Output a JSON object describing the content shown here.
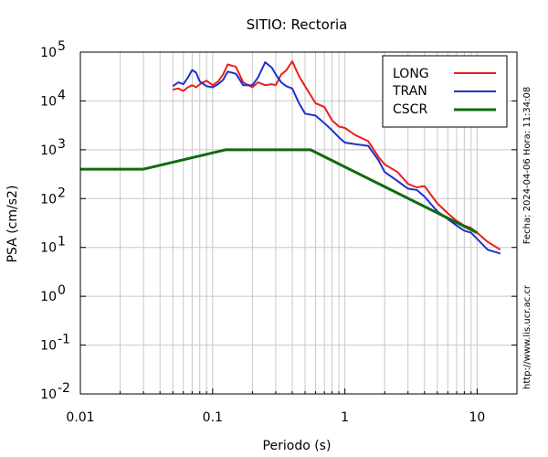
{
  "chart_data": {
    "type": "line",
    "title": "SITIO: Rectoria",
    "xlabel": "Periodo (s)",
    "ylabel": "PSA (cm/s2)",
    "x_scale": "log",
    "y_scale": "log",
    "xlim": [
      0.01,
      20
    ],
    "ylim": [
      0.01,
      100000
    ],
    "x_ticks": [
      {
        "value": 0.01,
        "label": "0.01"
      },
      {
        "value": 0.1,
        "label": "0.1"
      },
      {
        "value": 1,
        "label": "1"
      },
      {
        "value": 10,
        "label": "10"
      }
    ],
    "y_ticks": [
      {
        "value": 0.01,
        "base": "10",
        "exp": "-2"
      },
      {
        "value": 0.1,
        "base": "10",
        "exp": "-1"
      },
      {
        "value": 1,
        "base": "10",
        "exp": "0"
      },
      {
        "value": 10,
        "base": "10",
        "exp": "1"
      },
      {
        "value": 100,
        "base": "10",
        "exp": "2"
      },
      {
        "value": 1000,
        "base": "10",
        "exp": "3"
      },
      {
        "value": 10000,
        "base": "10",
        "exp": "4"
      },
      {
        "value": 100000,
        "base": "10",
        "exp": "5"
      }
    ],
    "grid": true,
    "legend_position": "top-right",
    "series": [
      {
        "name": "LONG",
        "color": "#e8201e",
        "x": [
          0.05,
          0.055,
          0.06,
          0.065,
          0.07,
          0.075,
          0.08,
          0.09,
          0.1,
          0.11,
          0.12,
          0.13,
          0.15,
          0.17,
          0.2,
          0.22,
          0.25,
          0.28,
          0.3,
          0.33,
          0.36,
          0.4,
          0.45,
          0.5,
          0.6,
          0.7,
          0.8,
          0.9,
          1.0,
          1.2,
          1.5,
          1.8,
          2.0,
          2.5,
          3.0,
          3.5,
          4.0,
          5.0,
          6.0,
          7.0,
          8.0,
          9.0,
          10.0,
          12.0,
          15.0
        ],
        "y": [
          17000,
          18000,
          16000,
          19000,
          21000,
          19000,
          22000,
          26000,
          21000,
          25000,
          35000,
          56000,
          50000,
          24000,
          19000,
          24000,
          21000,
          22000,
          21000,
          35000,
          42000,
          65000,
          32000,
          20000,
          9000,
          7500,
          4000,
          3000,
          2800,
          2000,
          1500,
          700,
          500,
          350,
          200,
          170,
          180,
          80,
          50,
          35,
          28,
          25,
          20,
          13,
          9
        ]
      },
      {
        "name": "TRAN",
        "color": "#1f30d0",
        "x": [
          0.05,
          0.055,
          0.06,
          0.065,
          0.07,
          0.075,
          0.08,
          0.09,
          0.1,
          0.11,
          0.12,
          0.13,
          0.15,
          0.17,
          0.2,
          0.22,
          0.25,
          0.28,
          0.3,
          0.33,
          0.36,
          0.4,
          0.45,
          0.5,
          0.6,
          0.7,
          0.8,
          0.9,
          1.0,
          1.2,
          1.5,
          1.8,
          2.0,
          2.5,
          3.0,
          3.5,
          4.0,
          5.0,
          6.0,
          7.0,
          8.0,
          9.0,
          10.0,
          12.0,
          15.0
        ],
        "y": [
          20000,
          24000,
          22000,
          30000,
          43000,
          38000,
          25000,
          20000,
          19000,
          22000,
          27000,
          40000,
          36000,
          21000,
          21000,
          30000,
          62000,
          48000,
          35000,
          24000,
          20000,
          18000,
          9000,
          5500,
          5000,
          3500,
          2500,
          1800,
          1400,
          1300,
          1200,
          600,
          350,
          230,
          160,
          150,
          110,
          55,
          38,
          28,
          22,
          20,
          15,
          9,
          7.5
        ]
      },
      {
        "name": "CSCR",
        "color": "#0f6b0f",
        "x": [
          0.01,
          0.03,
          0.125,
          0.55,
          10
        ],
        "y": [
          400,
          400,
          1000,
          1000,
          20
        ]
      }
    ]
  },
  "side_text": {
    "timestamp": "Fecha: 2024-04-06 Hora: 11:34:08",
    "url": "http://www.lis.ucr.ac.cr"
  }
}
